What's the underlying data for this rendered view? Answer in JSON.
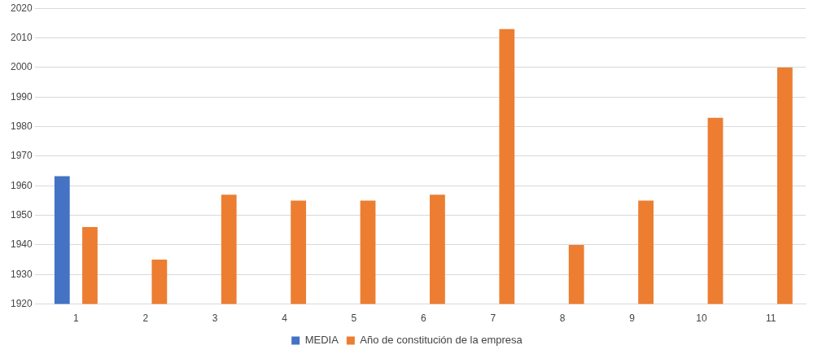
{
  "chart_data": {
    "type": "bar",
    "categories": [
      "1",
      "2",
      "3",
      "4",
      "5",
      "6",
      "7",
      "8",
      "9",
      "10",
      "11"
    ],
    "series": [
      {
        "name": "MEDIA",
        "color": "#4472c4",
        "values": [
          1963.2,
          null,
          null,
          null,
          null,
          null,
          null,
          null,
          null,
          null,
          null
        ]
      },
      {
        "name": "Año de constitución de la empresa",
        "color": "#ed7d31",
        "values": [
          1946,
          1935,
          1957,
          1955,
          1955,
          1957,
          2013,
          1940,
          1955,
          1983,
          2000
        ]
      }
    ],
    "ylim": [
      1920,
      2020
    ],
    "yticks": [
      1920,
      1930,
      1940,
      1950,
      1960,
      1970,
      1980,
      1990,
      2000,
      2010,
      2020
    ],
    "grid": "y",
    "legend": "bottom"
  }
}
